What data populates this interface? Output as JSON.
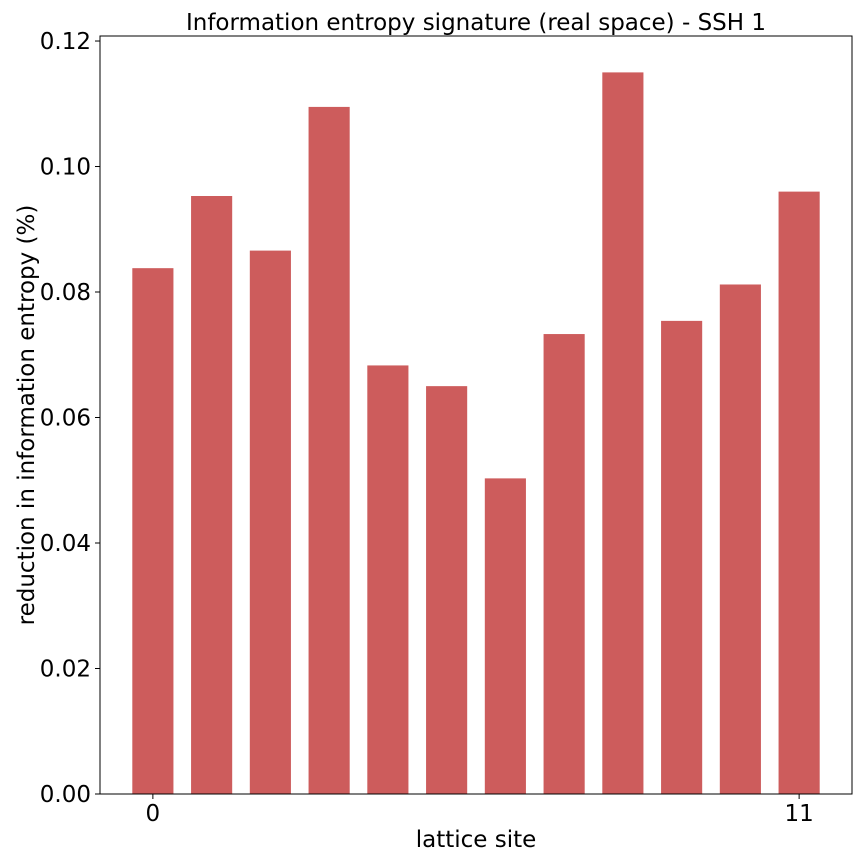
{
  "chart_data": {
    "type": "bar",
    "title": "Information entropy signature (real space) - SSH 1",
    "xlabel": "lattice site",
    "ylabel": "reduction in information entropy (%)",
    "categories": [
      0,
      1,
      2,
      3,
      4,
      5,
      6,
      7,
      8,
      9,
      10,
      11
    ],
    "values": [
      0.0838,
      0.0953,
      0.0866,
      0.1095,
      0.0683,
      0.065,
      0.0503,
      0.0733,
      0.115,
      0.0754,
      0.0812,
      0.096
    ],
    "x_ticks": [
      {
        "value": 0,
        "label": "0"
      },
      {
        "value": 11,
        "label": "11"
      }
    ],
    "y_ticks": [
      {
        "value": 0.0,
        "label": "0.00"
      },
      {
        "value": 0.02,
        "label": "0.02"
      },
      {
        "value": 0.04,
        "label": "0.04"
      },
      {
        "value": 0.06,
        "label": "0.06"
      },
      {
        "value": 0.08,
        "label": "0.08"
      },
      {
        "value": 0.1,
        "label": "0.10"
      },
      {
        "value": 0.12,
        "label": "0.12"
      }
    ],
    "xlim": [
      -0.9,
      11.9
    ],
    "ylim": [
      0,
      0.1208
    ],
    "bar_color": "#cd5c5c",
    "grid": false,
    "legend": "none"
  }
}
